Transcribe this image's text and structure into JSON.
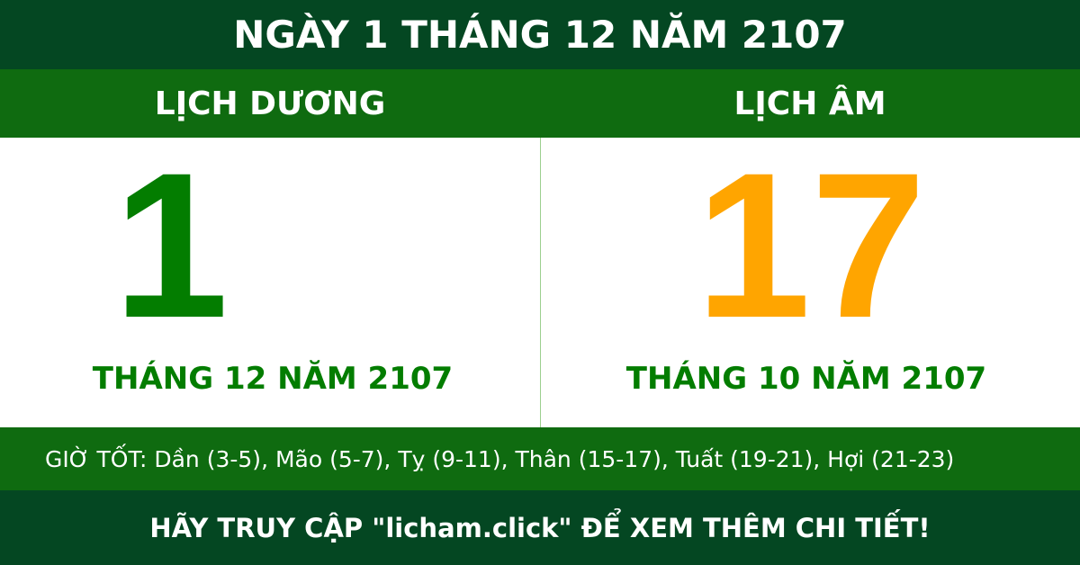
{
  "header": {
    "title": "NGÀY 1 THÁNG 12 NĂM 2107"
  },
  "solar": {
    "label": "LỊCH DƯƠNG",
    "day": "1",
    "month_year": "THÁNG 12 NĂM 2107"
  },
  "lunar": {
    "label": "LỊCH ÂM",
    "day": "17",
    "month_year": "THÁNG 10 NĂM 2107"
  },
  "good_hours": "GIỜ TỐT: Dần (3-5), Mão (5-7), Tỵ (9-11), Thân (15-17), Tuất (19-21), Hợi (21-23)",
  "footer": {
    "cta": "HÃY TRUY CẬP \"licham.click\" ĐỂ XEM THÊM CHI TIẾT!"
  },
  "colors": {
    "dark_green": "#044722",
    "green": "#0f6b10",
    "solar_day": "#037d00",
    "lunar_day": "#ffa500"
  }
}
